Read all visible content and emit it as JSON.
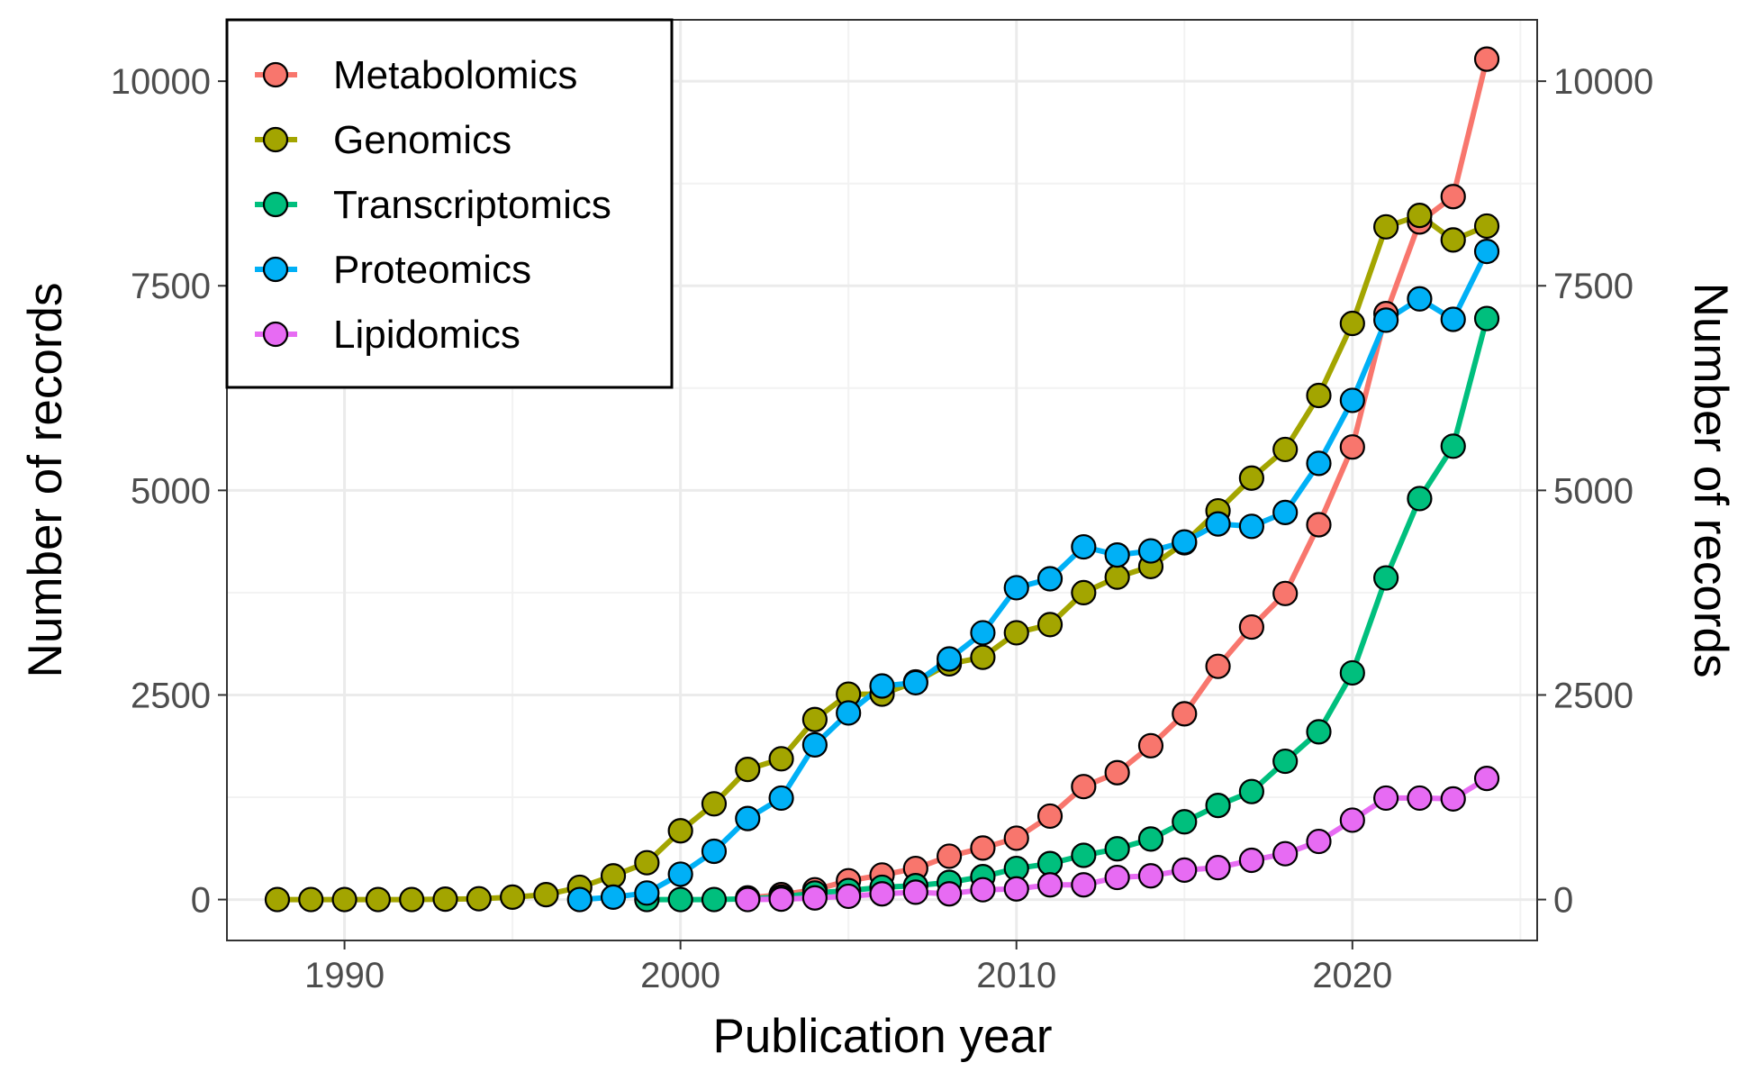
{
  "chart_data": {
    "type": "line",
    "xlabel": "Publication year",
    "ylabel": "Number of records",
    "ylabel_right": "Number of records",
    "xlim": [
      1986.5,
      2025.5
    ],
    "ylim": [
      -500,
      10750
    ],
    "x_ticks": [
      1990,
      2000,
      2010,
      2020
    ],
    "y_ticks": [
      0,
      2500,
      5000,
      7500,
      10000
    ],
    "grid": true,
    "legend_position": "top-left",
    "series": [
      {
        "name": "Metabolomics",
        "color": "#F8766D",
        "x": [
          2002,
          2003,
          2004,
          2005,
          2006,
          2007,
          2008,
          2009,
          2010,
          2011,
          2012,
          2013,
          2014,
          2015,
          2016,
          2017,
          2018,
          2019,
          2020,
          2021,
          2022,
          2023,
          2024
        ],
        "y": [
          20,
          60,
          120,
          230,
          300,
          380,
          530,
          630,
          750,
          1020,
          1380,
          1550,
          1880,
          2270,
          2850,
          3330,
          3740,
          4580,
          5530,
          7160,
          8280,
          8590,
          10270
        ]
      },
      {
        "name": "Genomics",
        "color": "#A3A500",
        "x": [
          1988,
          1989,
          1990,
          1991,
          1992,
          1993,
          1994,
          1995,
          1996,
          1997,
          1998,
          1999,
          2000,
          2001,
          2002,
          2003,
          2004,
          2005,
          2006,
          2007,
          2008,
          2009,
          2010,
          2011,
          2012,
          2013,
          2014,
          2015,
          2016,
          2017,
          2018,
          2019,
          2020,
          2021,
          2022,
          2023,
          2024
        ],
        "y": [
          0,
          0,
          0,
          0,
          0,
          5,
          10,
          30,
          60,
          150,
          290,
          450,
          840,
          1170,
          1590,
          1720,
          2200,
          2510,
          2510,
          2660,
          2880,
          2960,
          3260,
          3360,
          3750,
          3940,
          4070,
          4360,
          4750,
          5150,
          5500,
          6160,
          7040,
          8220,
          8360,
          8060,
          8230
        ]
      },
      {
        "name": "Transcriptomics",
        "color": "#00BF7D",
        "x": [
          1999,
          2000,
          2001,
          2002,
          2003,
          2004,
          2005,
          2006,
          2007,
          2008,
          2009,
          2010,
          2011,
          2012,
          2013,
          2014,
          2015,
          2016,
          2017,
          2018,
          2019,
          2020,
          2021,
          2022,
          2023,
          2024
        ],
        "y": [
          0,
          0,
          0,
          10,
          30,
          80,
          110,
          150,
          170,
          210,
          280,
          380,
          440,
          540,
          620,
          740,
          950,
          1150,
          1320,
          1690,
          2050,
          2770,
          3930,
          4900,
          5540,
          7100
        ]
      },
      {
        "name": "Proteomics",
        "color": "#00B0F6",
        "x": [
          1997,
          1998,
          1999,
          2000,
          2001,
          2002,
          2003,
          2004,
          2005,
          2006,
          2007,
          2008,
          2009,
          2010,
          2011,
          2012,
          2013,
          2014,
          2015,
          2016,
          2017,
          2018,
          2019,
          2020,
          2021,
          2022,
          2023,
          2024
        ],
        "y": [
          0,
          30,
          80,
          310,
          590,
          990,
          1240,
          1890,
          2280,
          2610,
          2650,
          2940,
          3260,
          3810,
          3920,
          4310,
          4210,
          4260,
          4370,
          4590,
          4560,
          4730,
          5330,
          6100,
          7080,
          7340,
          7090,
          7920
        ]
      },
      {
        "name": "Lipidomics",
        "color": "#E76BF3",
        "x": [
          2002,
          2003,
          2004,
          2005,
          2006,
          2007,
          2008,
          2009,
          2010,
          2011,
          2012,
          2013,
          2014,
          2015,
          2016,
          2017,
          2018,
          2019,
          2020,
          2021,
          2022,
          2023,
          2024
        ],
        "y": [
          0,
          5,
          20,
          40,
          70,
          90,
          70,
          120,
          130,
          180,
          180,
          270,
          290,
          360,
          390,
          480,
          560,
          710,
          970,
          1240,
          1240,
          1230,
          1480
        ]
      }
    ]
  }
}
